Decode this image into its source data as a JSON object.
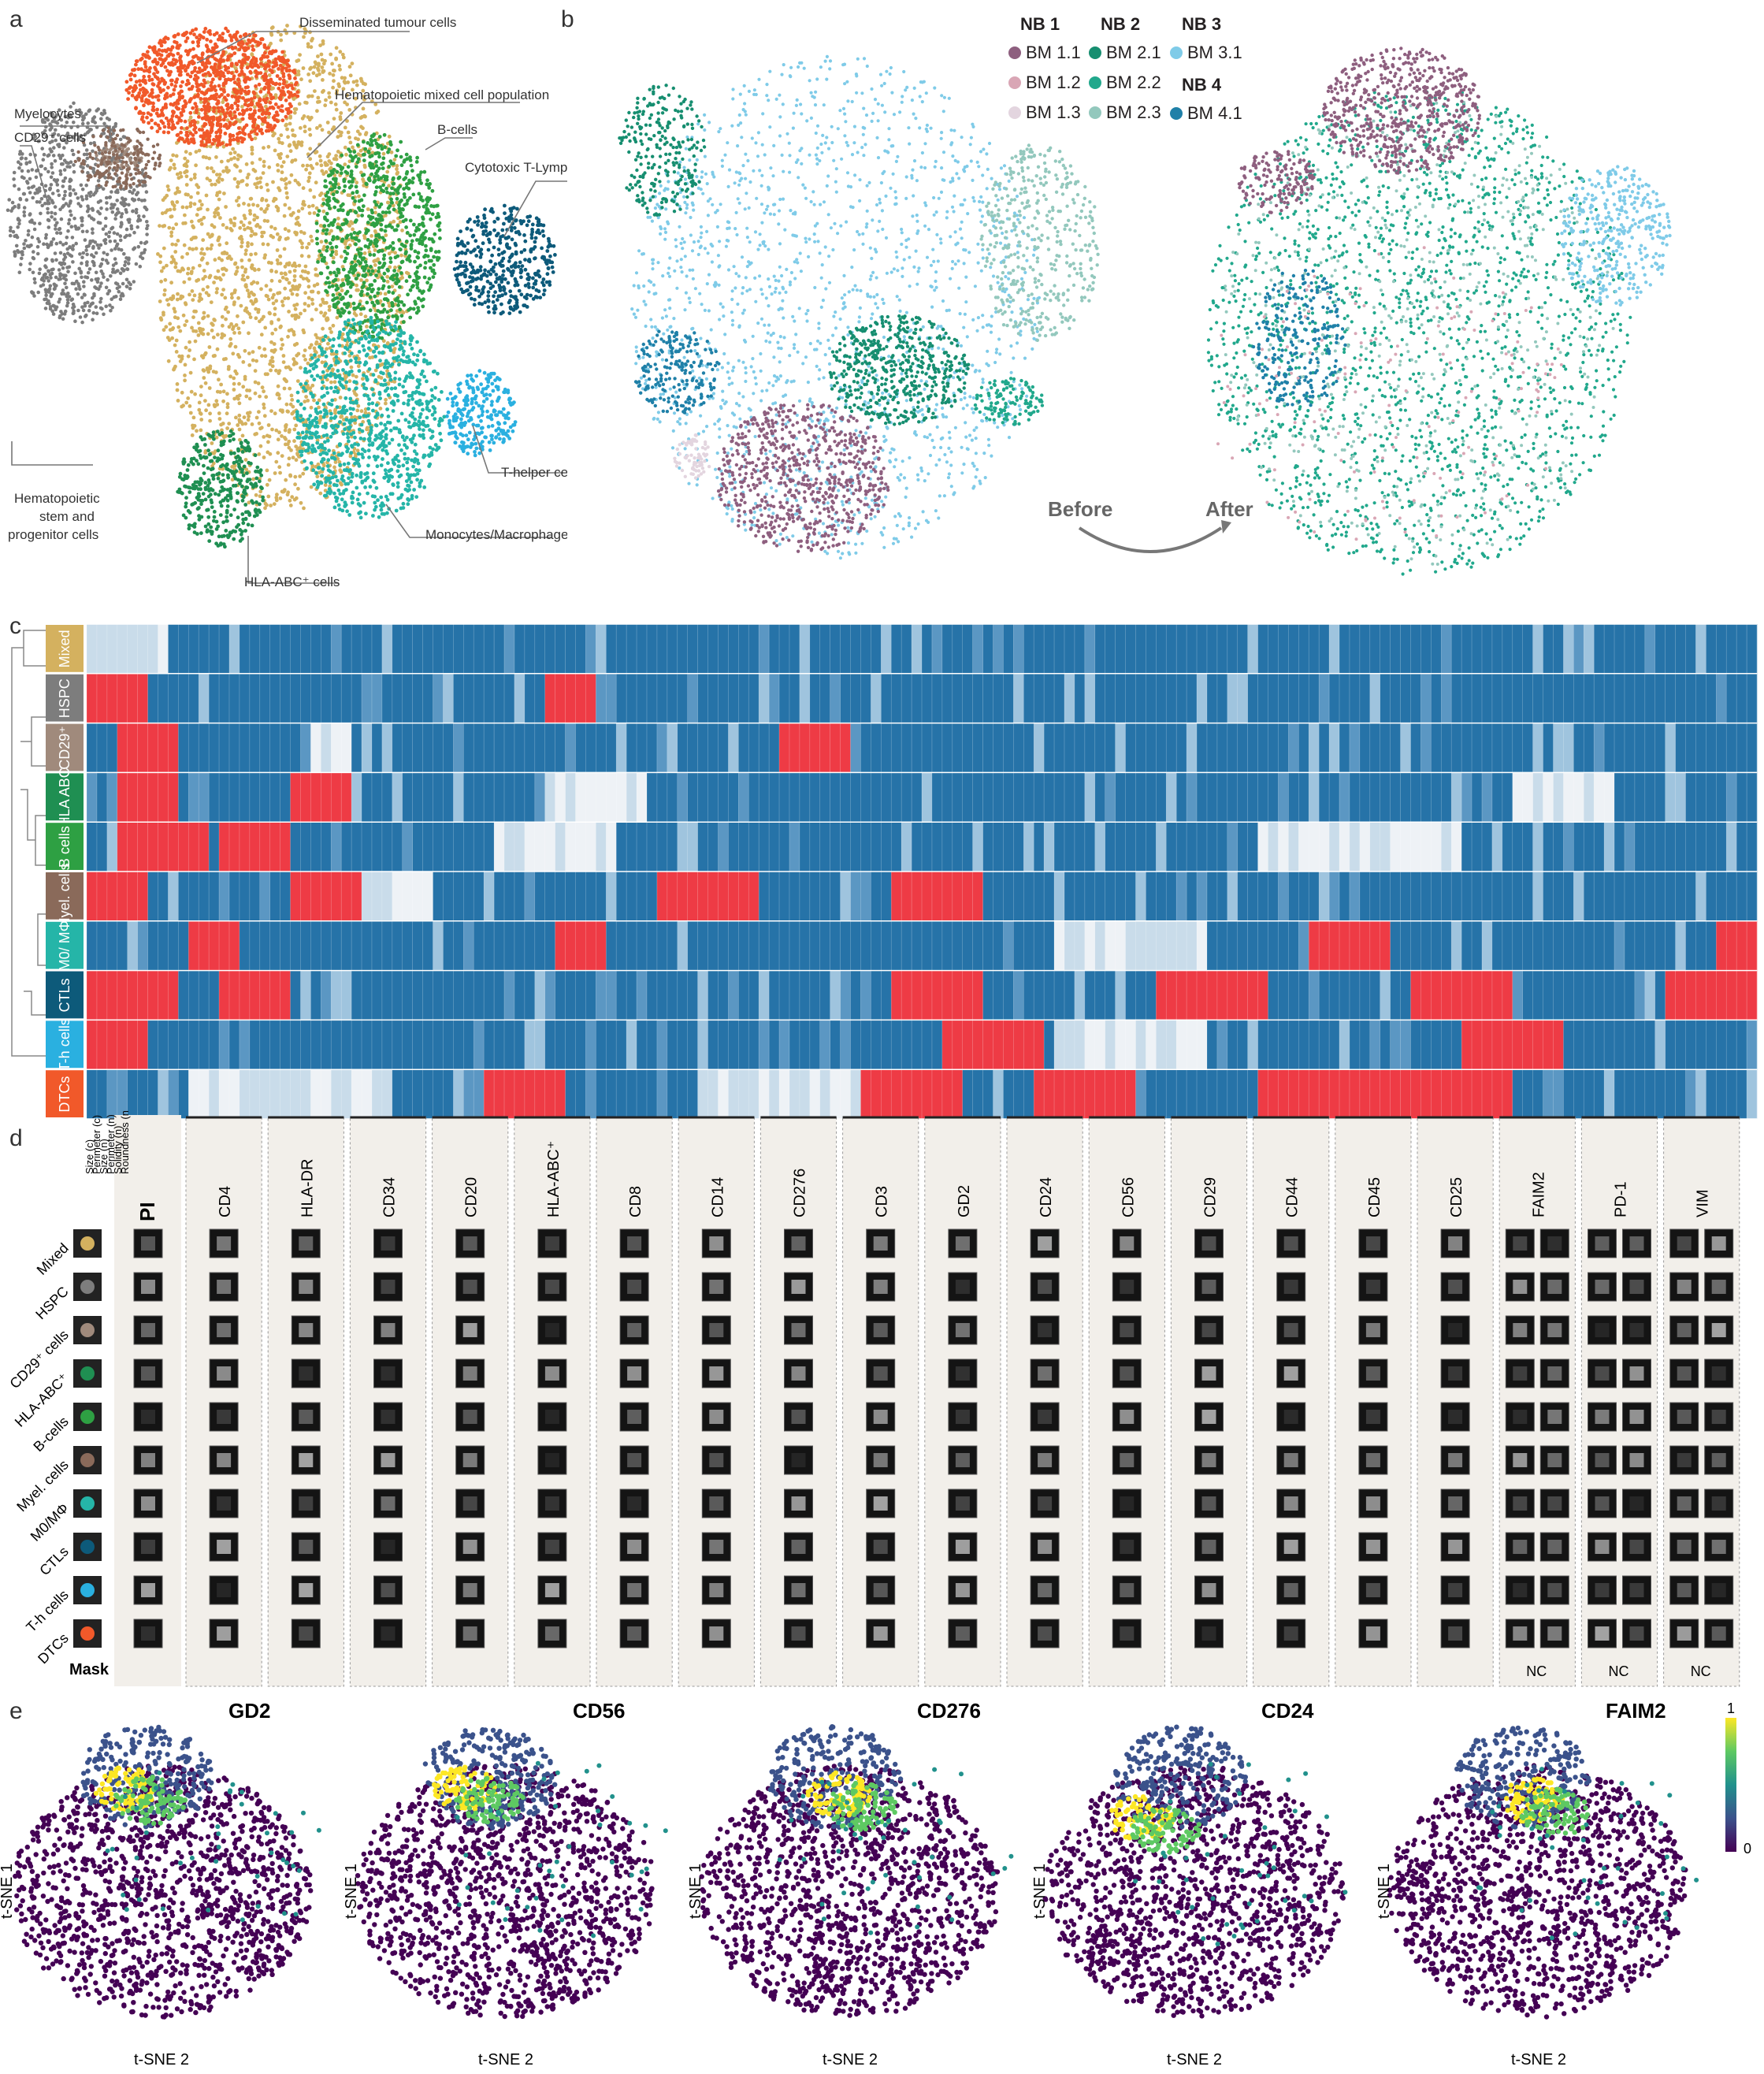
{
  "panels": {
    "a": "a",
    "b": "b",
    "c": "c",
    "d": "d",
    "e": "e"
  },
  "panel_a": {
    "clusters": [
      {
        "key": "dtc",
        "label": "Disseminated tumour cells",
        "color": "#f1592a"
      },
      {
        "key": "mixed",
        "label": "Hematopoietic mixed cell population",
        "color": "#d4b15f"
      },
      {
        "key": "bcell",
        "label": "B-cells",
        "color": "#2ea043"
      },
      {
        "key": "ctl",
        "label": "Cytotoxic T-Lymphocytes",
        "color": "#0d5a7a"
      },
      {
        "key": "myelo",
        "label": "Myelocytes",
        "color": "#8a6a5a"
      },
      {
        "key": "cd29",
        "label": "CD29⁺ cells",
        "color": "#a08a7c"
      },
      {
        "key": "hspc",
        "label_lines": [
          "Hematopoietic",
          "stem and",
          "progenitor cells"
        ],
        "color": "#7d7d7d"
      },
      {
        "key": "th",
        "label": "T-helper cells",
        "color": "#2ab0e0"
      },
      {
        "key": "mono",
        "label": "Monocytes/Macrophages",
        "color": "#25b5a8"
      },
      {
        "key": "hla",
        "label": "HLA-ABC⁺ cells",
        "color": "#1f8f52"
      }
    ]
  },
  "panel_b": {
    "legend": {
      "groups": [
        {
          "title": "NB 1",
          "items": [
            {
              "label": "BM 1.1",
              "color": "#8e5f7f"
            },
            {
              "label": "BM 1.2",
              "color": "#d9a6b5"
            },
            {
              "label": "BM 1.3",
              "color": "#e3d5df"
            }
          ]
        },
        {
          "title": "NB 2",
          "items": [
            {
              "label": "BM 2.1",
              "color": "#168e70"
            },
            {
              "label": "BM 2.2",
              "color": "#21a88c"
            },
            {
              "label": "BM 2.3",
              "color": "#93c8bd"
            }
          ]
        },
        {
          "title": "NB 3",
          "items": [
            {
              "label": "BM 3.1",
              "color": "#7fcbe8"
            }
          ]
        },
        {
          "title": "NB 4",
          "items": [
            {
              "label": "BM 4.1",
              "color": "#1f80a8"
            }
          ]
        }
      ]
    },
    "before_label": "Before",
    "after_label": "After"
  },
  "panel_c": {
    "row_labels": [
      {
        "label": "Mixed",
        "color": "#d4b15f"
      },
      {
        "label": "HSPC",
        "color": "#7d7d7d"
      },
      {
        "label": "CD29⁺",
        "color": "#a08a7c"
      },
      {
        "label": "HLA ABC",
        "color": "#1f8f52"
      },
      {
        "label": "B cells",
        "color": "#2ea043"
      },
      {
        "label": "Myel. cells",
        "color": "#8a6a5a"
      },
      {
        "label": "M0/ MΦ",
        "color": "#25b5a8"
      },
      {
        "label": "CTLs",
        "color": "#0d5a7a"
      },
      {
        "label": "T-h cells",
        "color": "#2ab0e0"
      },
      {
        "label": "DTCs",
        "color": "#f1592a"
      }
    ],
    "colors": {
      "low": "#2673a8",
      "high": "#ee3b45",
      "mid": "#eef2f6"
    }
  },
  "panel_d": {
    "morph_headers": [
      "Size (c)",
      "Perimeter (c)",
      "Size (n)",
      "Perimeter (n)",
      "Solidity (n)",
      "Roundness (n)"
    ],
    "markers": [
      "PI",
      "CD4",
      "HLA-DR",
      "CD34",
      "CD20",
      "HLA-ABC⁺",
      "CD8",
      "CD14",
      "CD276",
      "CD3",
      "GD2",
      "CD24",
      "CD56",
      "CD29",
      "CD44",
      "CD45",
      "CD25",
      "FAIM2",
      "PD-1",
      "VIM"
    ],
    "row_labels": [
      "Mixed",
      "HSPC",
      "CD29⁺ cells",
      "HLA-ABC⁺",
      "B-cells",
      "Myel. cells",
      "M0/MΦ",
      "CTLs",
      "T-h cells",
      "DTCs"
    ],
    "mask_label": "Mask",
    "nc_label": "NC"
  },
  "panel_e": {
    "maps": [
      {
        "title": "GD2"
      },
      {
        "title": "CD56"
      },
      {
        "title": "CD276"
      },
      {
        "title": "CD24"
      },
      {
        "title": "FAIM2"
      }
    ],
    "x_label": "t-SNE 2",
    "y_label": "t-SNE 1",
    "scale_max": "1",
    "scale_min": "0",
    "colors": [
      "#440154",
      "#3b528b",
      "#21918c",
      "#5ec962",
      "#fde725"
    ]
  }
}
